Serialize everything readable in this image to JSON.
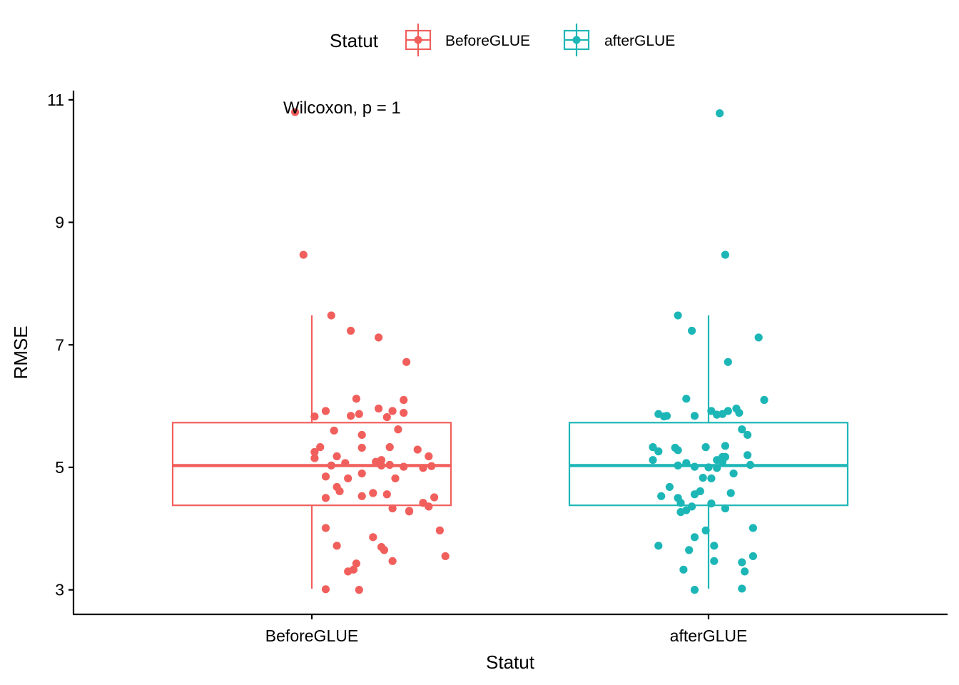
{
  "chart_data": {
    "type": "boxplot",
    "xlabel": "Statut",
    "ylabel": "RMSE",
    "ylim": [
      2.6,
      11.15
    ],
    "y_ticks": [
      "3",
      "5",
      "7",
      "9",
      "11"
    ],
    "categories": [
      "BeforeGLUE",
      "afterGLUE"
    ],
    "grid": false,
    "legend": {
      "title": "Statut",
      "position": "top",
      "entries": [
        "BeforeGLUE",
        "afterGLUE"
      ]
    },
    "annotation": "Wilcoxon, p = 1",
    "colors": {
      "BeforeGLUE": "#F15F5C",
      "afterGLUE": "#1DB6B6"
    },
    "boxes": [
      {
        "name": "BeforeGLUE",
        "whisker_low": 3.02,
        "q1": 4.38,
        "median": 5.03,
        "q3": 5.73,
        "whisker_high": 7.48
      },
      {
        "name": "afterGLUE",
        "whisker_low": 3.02,
        "q1": 4.38,
        "median": 5.03,
        "q3": 5.73,
        "whisker_high": 7.48
      }
    ],
    "series": [
      {
        "name": "BeforeGLUE",
        "points": [
          [
            -0.06,
            10.8
          ],
          [
            -0.03,
            8.47
          ],
          [
            0.07,
            7.48
          ],
          [
            0.14,
            7.23
          ],
          [
            0.24,
            7.12
          ],
          [
            0.34,
            6.72
          ],
          [
            0.16,
            6.12
          ],
          [
            0.33,
            6.1
          ],
          [
            0.24,
            5.96
          ],
          [
            0.05,
            5.92
          ],
          [
            0.29,
            5.92
          ],
          [
            0.33,
            5.89
          ],
          [
            0.17,
            5.87
          ],
          [
            0.14,
            5.84
          ],
          [
            0.01,
            5.83
          ],
          [
            0.27,
            5.82
          ],
          [
            0.31,
            5.62
          ],
          [
            0.08,
            5.6
          ],
          [
            0.18,
            5.53
          ],
          [
            0.28,
            5.33
          ],
          [
            0.03,
            5.33
          ],
          [
            0.18,
            5.32
          ],
          [
            0.38,
            5.29
          ],
          [
            0.01,
            5.25
          ],
          [
            0.09,
            5.18
          ],
          [
            0.42,
            5.18
          ],
          [
            0.01,
            5.15
          ],
          [
            0.25,
            5.12
          ],
          [
            0.23,
            5.09
          ],
          [
            0.12,
            5.07
          ],
          [
            0.28,
            5.04
          ],
          [
            0.25,
            5.03
          ],
          [
            0.07,
            5.03
          ],
          [
            0.43,
            5.02
          ],
          [
            0.33,
            5.01
          ],
          [
            0.4,
            4.99
          ],
          [
            0.18,
            4.9
          ],
          [
            0.05,
            4.85
          ],
          [
            0.13,
            4.82
          ],
          [
            0.3,
            4.82
          ],
          [
            0.09,
            4.68
          ],
          [
            0.1,
            4.61
          ],
          [
            0.22,
            4.58
          ],
          [
            0.27,
            4.56
          ],
          [
            0.18,
            4.53
          ],
          [
            0.44,
            4.51
          ],
          [
            0.05,
            4.5
          ],
          [
            0.4,
            4.42
          ],
          [
            0.42,
            4.36
          ],
          [
            0.29,
            4.33
          ],
          [
            0.35,
            4.29
          ],
          [
            0.35,
            4.28
          ],
          [
            0.05,
            4.01
          ],
          [
            0.46,
            3.97
          ],
          [
            0.22,
            3.86
          ],
          [
            0.09,
            3.72
          ],
          [
            0.25,
            3.7
          ],
          [
            0.26,
            3.65
          ],
          [
            0.48,
            3.55
          ],
          [
            0.29,
            3.47
          ],
          [
            0.16,
            3.43
          ],
          [
            0.15,
            3.33
          ],
          [
            0.13,
            3.3
          ],
          [
            0.05,
            3.01
          ],
          [
            0.17,
            3.0
          ]
        ]
      },
      {
        "name": "afterGLUE",
        "points": [
          [
            0.04,
            10.78
          ],
          [
            0.06,
            8.47
          ],
          [
            -0.11,
            7.48
          ],
          [
            -0.06,
            7.23
          ],
          [
            0.18,
            7.12
          ],
          [
            0.07,
            6.72
          ],
          [
            -0.08,
            6.12
          ],
          [
            0.2,
            6.1
          ],
          [
            0.1,
            5.96
          ],
          [
            0.07,
            5.92
          ],
          [
            0.01,
            5.92
          ],
          [
            0.11,
            5.89
          ],
          [
            -0.18,
            5.87
          ],
          [
            0.05,
            5.87
          ],
          [
            0.03,
            5.86
          ],
          [
            -0.15,
            5.84
          ],
          [
            -0.16,
            5.83
          ],
          [
            -0.05,
            5.84
          ],
          [
            0.12,
            5.62
          ],
          [
            0.14,
            5.53
          ],
          [
            0.06,
            5.35
          ],
          [
            -0.01,
            5.33
          ],
          [
            -0.2,
            5.33
          ],
          [
            -0.12,
            5.32
          ],
          [
            -0.11,
            5.28
          ],
          [
            -0.18,
            5.26
          ],
          [
            0.14,
            5.2
          ],
          [
            0.05,
            5.17
          ],
          [
            0.06,
            5.17
          ],
          [
            0.03,
            5.12
          ],
          [
            -0.2,
            5.12
          ],
          [
            0.05,
            5.09
          ],
          [
            -0.08,
            5.07
          ],
          [
            0.15,
            5.04
          ],
          [
            -0.11,
            5.03
          ],
          [
            0.0,
            5.0
          ],
          [
            -0.05,
            5.01
          ],
          [
            0.03,
            4.99
          ],
          [
            -0.02,
            4.83
          ],
          [
            0.09,
            4.9
          ],
          [
            0.01,
            4.82
          ],
          [
            -0.14,
            4.68
          ],
          [
            -0.03,
            4.61
          ],
          [
            0.08,
            4.58
          ],
          [
            -0.05,
            4.56
          ],
          [
            -0.17,
            4.53
          ],
          [
            -0.11,
            4.5
          ],
          [
            -0.1,
            4.42
          ],
          [
            0.01,
            4.41
          ],
          [
            -0.06,
            4.36
          ],
          [
            0.06,
            4.33
          ],
          [
            -0.08,
            4.3
          ],
          [
            -0.1,
            4.27
          ],
          [
            0.16,
            4.01
          ],
          [
            -0.01,
            3.97
          ],
          [
            -0.05,
            3.86
          ],
          [
            0.02,
            3.72
          ],
          [
            -0.18,
            3.72
          ],
          [
            -0.07,
            3.65
          ],
          [
            0.02,
            3.47
          ],
          [
            0.16,
            3.55
          ],
          [
            0.12,
            3.45
          ],
          [
            -0.09,
            3.33
          ],
          [
            0.13,
            3.3
          ],
          [
            0.12,
            3.02
          ],
          [
            -0.05,
            3.0
          ]
        ]
      }
    ]
  }
}
